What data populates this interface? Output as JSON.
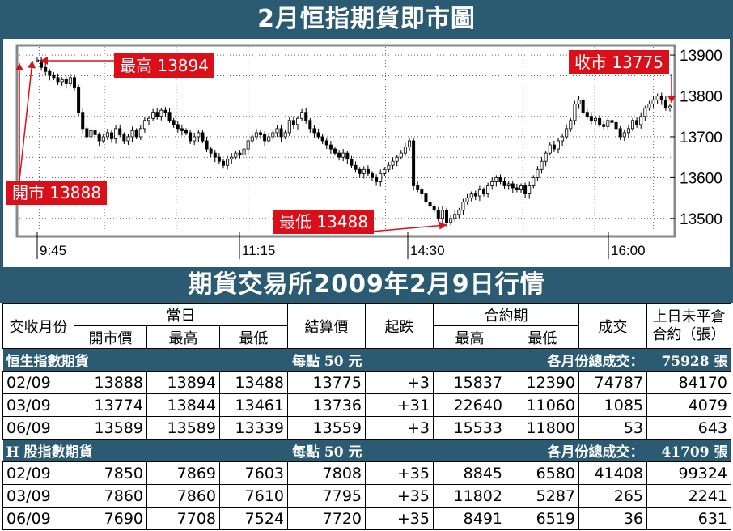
{
  "title": "2月恒指期貨即市圖",
  "table_title": "期貨交易所2009年2月9日行情",
  "colors": {
    "banner": "#2a5b73",
    "label": "#d9101a",
    "arrow": "#d9101a",
    "grid": "#000000"
  },
  "chart_data": {
    "type": "candlestick",
    "x_ticks": [
      "9:45",
      "11:15",
      "14:30",
      "16:00"
    ],
    "y_ticks": [
      13500,
      13600,
      13700,
      13800,
      13900
    ],
    "ylim": [
      13460,
      13920
    ],
    "grid": true,
    "annotations": {
      "high": "最高 13894",
      "low": "最低 13488",
      "open": "開市 13888",
      "close": "收市 13775"
    },
    "series": [
      13888,
      13870,
      13860,
      13850,
      13845,
      13835,
      13840,
      13830,
      13845,
      13820,
      13760,
      13720,
      13700,
      13715,
      13705,
      13690,
      13700,
      13710,
      13695,
      13720,
      13705,
      13690,
      13700,
      13715,
      13700,
      13720,
      13740,
      13745,
      13760,
      13750,
      13765,
      13760,
      13740,
      13730,
      13720,
      13715,
      13710,
      13690,
      13700,
      13710,
      13690,
      13670,
      13660,
      13650,
      13640,
      13630,
      13645,
      13650,
      13660,
      13655,
      13670,
      13690,
      13700,
      13710,
      13705,
      13690,
      13700,
      13710,
      13720,
      13700,
      13710,
      13740,
      13730,
      13745,
      13760,
      13740,
      13720,
      13710,
      13700,
      13690,
      13680,
      13670,
      13660,
      13650,
      13660,
      13645,
      13630,
      13620,
      13610,
      13620,
      13610,
      13600,
      13590,
      13610,
      13620,
      13630,
      13640,
      13650,
      13660,
      13675,
      13690,
      13580,
      13570,
      13560,
      13540,
      13530,
      13520,
      13500,
      13520,
      13490,
      13500,
      13510,
      13520,
      13540,
      13550,
      13560,
      13555,
      13570,
      13560,
      13580,
      13590,
      13600,
      13590,
      13580,
      13585,
      13575,
      13570,
      13580,
      13560,
      13580,
      13600,
      13620,
      13640,
      13660,
      13680,
      13670,
      13690,
      13700,
      13720,
      13740,
      13780,
      13790,
      13760,
      13750,
      13740,
      13745,
      13730,
      13725,
      13740,
      13735,
      13720,
      13700,
      13710,
      13720,
      13740,
      13730,
      13750,
      13770,
      13780,
      13790,
      13800,
      13790,
      13770,
      13775
    ]
  },
  "table": {
    "headers": {
      "month": "交收月份",
      "day": "當日",
      "open": "開市價",
      "high": "最高",
      "low": "最低",
      "settle": "結算價",
      "change": "起跌",
      "contract": "合約期",
      "c_high": "最高",
      "c_low": "最低",
      "volume": "成交",
      "oi_line1": "上日未平倉",
      "oi_line2": "合約（張）"
    },
    "sections": [
      {
        "name": "恒生指數期貨",
        "per_point": "每點 50 元",
        "total_label": "各月份總成交：",
        "total_value": "75928 張",
        "rows": [
          [
            "02/09",
            "13888",
            "13894",
            "13488",
            "13775",
            "+3",
            "15837",
            "12390",
            "74787",
            "84170"
          ],
          [
            "03/09",
            "13774",
            "13844",
            "13461",
            "13736",
            "+31",
            "22640",
            "11060",
            "1085",
            "4079"
          ],
          [
            "06/09",
            "13589",
            "13589",
            "13339",
            "13559",
            "+3",
            "15533",
            "11800",
            "53",
            "643"
          ]
        ]
      },
      {
        "name": "H 股指數期貨",
        "per_point": "每點 50 元",
        "total_label": "各月份總成交：",
        "total_value": "41709 張",
        "rows": [
          [
            "02/09",
            "7850",
            "7869",
            "7603",
            "7808",
            "+35",
            "8845",
            "6580",
            "41408",
            "99324"
          ],
          [
            "03/09",
            "7860",
            "7860",
            "7610",
            "7795",
            "+35",
            "11802",
            "5287",
            "265",
            "2241"
          ],
          [
            "06/09",
            "7690",
            "7708",
            "7524",
            "7720",
            "+35",
            "8491",
            "6519",
            "36",
            "631"
          ]
        ]
      }
    ]
  }
}
